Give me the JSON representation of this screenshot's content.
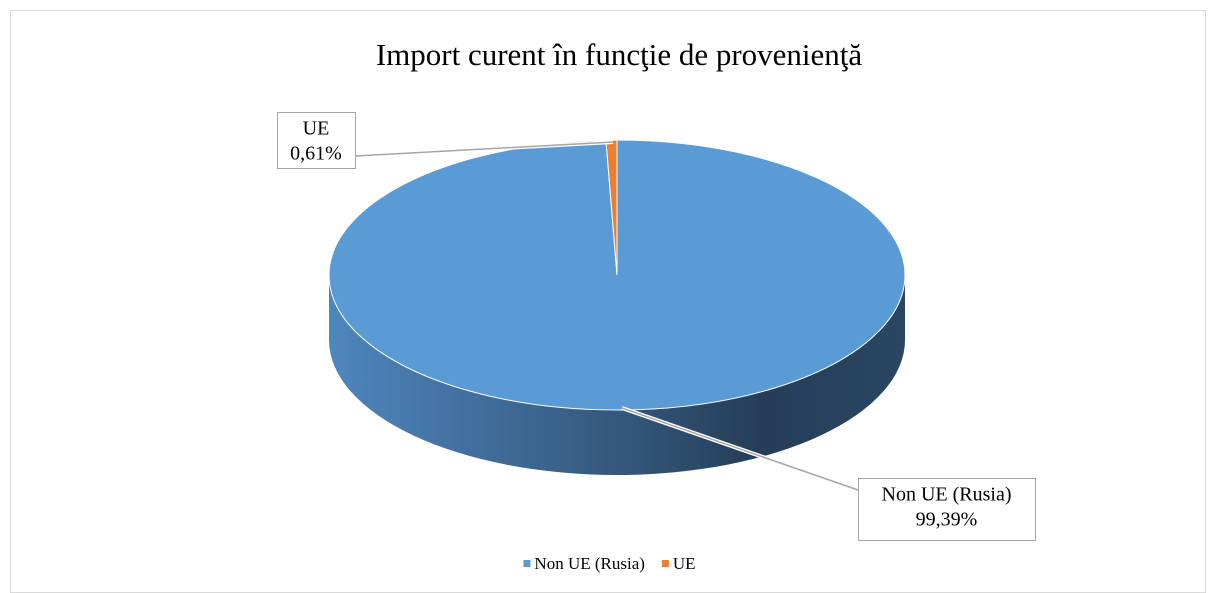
{
  "chart_data": {
    "type": "pie",
    "title": "Import curent în funcţie de provenienţă",
    "categories": [
      "Non UE (Rusia)",
      "UE"
    ],
    "values": [
      99.39,
      0.61
    ],
    "value_labels": [
      "99,39%",
      "0,61%"
    ],
    "colors": [
      "#5b9bd5",
      "#ed7d31"
    ],
    "legend": "bottom"
  }
}
